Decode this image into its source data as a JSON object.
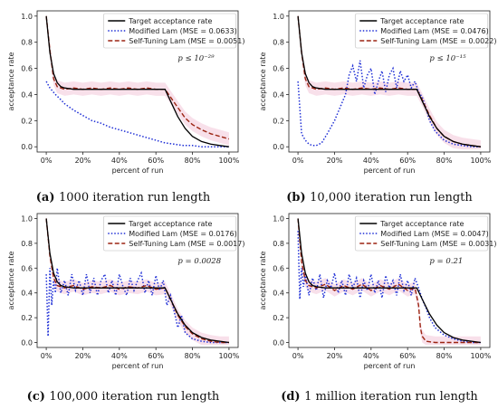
{
  "colors": {
    "target": "#000000",
    "modified": "#1f2fd6",
    "selftuning": "#9b2412",
    "band": "#f2c6d8"
  },
  "chart_data": [
    {
      "type": "line",
      "caption_label": "(a)",
      "caption_text": "1000 iteration run length",
      "xlabel": "percent of run",
      "ylabel": "acceptance rate",
      "xlim": [
        0,
        100
      ],
      "ylim": [
        0,
        1
      ],
      "xticks": [
        "0%",
        "20%",
        "40%",
        "60%",
        "80%",
        "100%"
      ],
      "yticks": [
        "0.0",
        "0.2",
        "0.4",
        "0.6",
        "0.8",
        "1.0"
      ],
      "legend": [
        "Target acceptance rate",
        "Modified Lam (MSE = 0.0633)",
        "Self-Tuning Lam (MSE = 0.0051)"
      ],
      "annotation": "p ≤ 10⁻²⁹",
      "target": {
        "x": [
          0,
          2,
          4,
          6,
          8,
          10,
          15,
          20,
          30,
          40,
          50,
          60,
          65,
          68,
          72,
          76,
          80,
          85,
          90,
          95,
          100
        ],
        "y": [
          1.0,
          0.72,
          0.56,
          0.49,
          0.46,
          0.45,
          0.44,
          0.44,
          0.44,
          0.44,
          0.44,
          0.44,
          0.44,
          0.35,
          0.23,
          0.14,
          0.08,
          0.04,
          0.02,
          0.01,
          0.0
        ]
      },
      "modified": {
        "x": [
          0,
          2,
          5,
          8,
          10,
          15,
          20,
          25,
          30,
          35,
          40,
          45,
          50,
          55,
          60,
          65,
          70,
          75,
          80,
          85,
          90,
          95,
          100
        ],
        "y": [
          0.5,
          0.45,
          0.4,
          0.36,
          0.33,
          0.28,
          0.24,
          0.2,
          0.18,
          0.15,
          0.13,
          0.11,
          0.09,
          0.07,
          0.05,
          0.03,
          0.02,
          0.01,
          0.01,
          0.0,
          0.0,
          0.0,
          0.0
        ]
      },
      "selftuning": {
        "x": [
          0,
          2,
          4,
          6,
          8,
          10,
          15,
          20,
          25,
          30,
          35,
          40,
          45,
          50,
          55,
          60,
          65,
          68,
          72,
          76,
          80,
          85,
          90,
          95,
          100
        ],
        "y": [
          1.0,
          0.74,
          0.52,
          0.46,
          0.45,
          0.44,
          0.45,
          0.44,
          0.45,
          0.44,
          0.45,
          0.44,
          0.45,
          0.44,
          0.45,
          0.44,
          0.44,
          0.38,
          0.3,
          0.22,
          0.17,
          0.13,
          0.1,
          0.08,
          0.06
        ]
      }
    },
    {
      "type": "line",
      "caption_label": "(b)",
      "caption_text": "10,000 iteration run length",
      "xlabel": "percent of run",
      "ylabel": "acceptance rate",
      "xlim": [
        0,
        100
      ],
      "ylim": [
        0,
        1
      ],
      "xticks": [
        "0%",
        "20%",
        "40%",
        "60%",
        "80%",
        "100%"
      ],
      "yticks": [
        "0.0",
        "0.2",
        "0.4",
        "0.6",
        "0.8",
        "1.0"
      ],
      "legend": [
        "Target acceptance rate",
        "Modified Lam (MSE = 0.0476)",
        "Self-Tuning Lam (MSE = 0.0022)"
      ],
      "annotation": "p ≤ 10⁻¹⁵",
      "target": {
        "x": [
          0,
          2,
          4,
          6,
          8,
          10,
          15,
          20,
          30,
          40,
          50,
          60,
          65,
          68,
          72,
          76,
          80,
          85,
          90,
          95,
          100
        ],
        "y": [
          1.0,
          0.72,
          0.56,
          0.49,
          0.46,
          0.45,
          0.44,
          0.44,
          0.44,
          0.44,
          0.44,
          0.44,
          0.44,
          0.35,
          0.23,
          0.14,
          0.08,
          0.04,
          0.02,
          0.01,
          0.0
        ]
      },
      "modified": {
        "x": [
          0,
          2,
          4,
          6,
          8,
          10,
          13,
          16,
          20,
          23,
          26,
          28,
          30,
          32,
          34,
          36,
          38,
          40,
          42,
          44,
          46,
          48,
          50,
          52,
          54,
          56,
          58,
          60,
          62,
          64,
          66,
          68,
          70,
          72,
          75,
          80,
          85,
          90,
          95,
          100
        ],
        "y": [
          0.5,
          0.1,
          0.05,
          0.02,
          0.01,
          0.01,
          0.03,
          0.1,
          0.2,
          0.3,
          0.4,
          0.55,
          0.62,
          0.5,
          0.66,
          0.45,
          0.55,
          0.6,
          0.4,
          0.5,
          0.58,
          0.42,
          0.55,
          0.6,
          0.45,
          0.58,
          0.5,
          0.55,
          0.45,
          0.5,
          0.42,
          0.38,
          0.3,
          0.2,
          0.12,
          0.05,
          0.02,
          0.01,
          0.0,
          0.0
        ]
      },
      "selftuning": {
        "x": [
          0,
          2,
          4,
          6,
          8,
          10,
          15,
          20,
          25,
          30,
          35,
          40,
          45,
          50,
          55,
          60,
          65,
          68,
          72,
          76,
          80,
          85,
          90,
          95,
          100
        ],
        "y": [
          1.0,
          0.72,
          0.52,
          0.46,
          0.45,
          0.44,
          0.45,
          0.44,
          0.45,
          0.44,
          0.45,
          0.44,
          0.45,
          0.44,
          0.45,
          0.44,
          0.44,
          0.36,
          0.24,
          0.14,
          0.08,
          0.04,
          0.02,
          0.01,
          0.0
        ]
      }
    },
    {
      "type": "line",
      "caption_label": "(c)",
      "caption_text": "100,000 iteration run length",
      "xlabel": "percent of run",
      "ylabel": "acceptance rate",
      "xlim": [
        0,
        100
      ],
      "ylim": [
        0,
        1
      ],
      "xticks": [
        "0%",
        "20%",
        "40%",
        "60%",
        "80%",
        "100%"
      ],
      "yticks": [
        "0.0",
        "0.2",
        "0.4",
        "0.6",
        "0.8",
        "1.0"
      ],
      "legend": [
        "Target acceptance rate",
        "Modified Lam (MSE = 0.0176)",
        "Self-Tuning Lam (MSE = 0.0017)"
      ],
      "annotation": "p = 0.0028",
      "target": {
        "x": [
          0,
          2,
          4,
          6,
          8,
          10,
          15,
          20,
          30,
          40,
          50,
          60,
          65,
          68,
          72,
          76,
          80,
          85,
          90,
          95,
          100
        ],
        "y": [
          1.0,
          0.72,
          0.56,
          0.49,
          0.46,
          0.45,
          0.44,
          0.44,
          0.44,
          0.44,
          0.44,
          0.44,
          0.44,
          0.35,
          0.23,
          0.14,
          0.08,
          0.04,
          0.02,
          0.01,
          0.0
        ]
      },
      "modified": {
        "x": [
          0,
          1,
          2,
          3,
          4,
          5,
          6,
          8,
          10,
          12,
          14,
          16,
          18,
          20,
          22,
          24,
          26,
          28,
          30,
          32,
          34,
          36,
          38,
          40,
          42,
          44,
          46,
          48,
          50,
          52,
          54,
          56,
          58,
          60,
          62,
          64,
          66,
          68,
          70,
          72,
          74,
          76,
          80,
          85,
          90,
          95,
          100
        ],
        "y": [
          0.55,
          0.05,
          0.6,
          0.3,
          0.5,
          0.4,
          0.6,
          0.4,
          0.5,
          0.38,
          0.55,
          0.42,
          0.5,
          0.38,
          0.55,
          0.4,
          0.52,
          0.38,
          0.5,
          0.55,
          0.4,
          0.5,
          0.38,
          0.55,
          0.45,
          0.38,
          0.52,
          0.42,
          0.5,
          0.56,
          0.4,
          0.5,
          0.38,
          0.54,
          0.42,
          0.5,
          0.3,
          0.38,
          0.25,
          0.12,
          0.22,
          0.08,
          0.03,
          0.01,
          0.0,
          0.0,
          0.0
        ]
      },
      "selftuning": {
        "x": [
          0,
          2,
          4,
          6,
          8,
          10,
          15,
          20,
          25,
          30,
          35,
          40,
          45,
          50,
          55,
          60,
          65,
          68,
          72,
          76,
          80,
          85,
          90,
          95,
          100
        ],
        "y": [
          1.0,
          0.7,
          0.52,
          0.46,
          0.45,
          0.44,
          0.46,
          0.43,
          0.45,
          0.44,
          0.46,
          0.43,
          0.45,
          0.44,
          0.46,
          0.43,
          0.44,
          0.35,
          0.22,
          0.13,
          0.07,
          0.03,
          0.01,
          0.0,
          0.0
        ]
      }
    },
    {
      "type": "line",
      "caption_label": "(d)",
      "caption_text": "1 million iteration run length",
      "xlabel": "percent of run",
      "ylabel": "acceptance rate",
      "xlim": [
        0,
        100
      ],
      "ylim": [
        0,
        1
      ],
      "xticks": [
        "0%",
        "20%",
        "40%",
        "60%",
        "80%",
        "100%"
      ],
      "yticks": [
        "0.0",
        "0.2",
        "0.4",
        "0.6",
        "0.8",
        "1.0"
      ],
      "legend": [
        "Target acceptance rate",
        "Modified Lam (MSE = 0.0047)",
        "Self-Tuning Lam (MSE = 0.0031)"
      ],
      "annotation": "p = 0.21",
      "target": {
        "x": [
          0,
          2,
          4,
          6,
          8,
          10,
          15,
          20,
          30,
          40,
          50,
          60,
          65,
          68,
          72,
          76,
          80,
          85,
          90,
          95,
          100
        ],
        "y": [
          1.0,
          0.72,
          0.56,
          0.49,
          0.46,
          0.45,
          0.44,
          0.44,
          0.44,
          0.44,
          0.44,
          0.44,
          0.44,
          0.35,
          0.23,
          0.14,
          0.08,
          0.04,
          0.02,
          0.01,
          0.0
        ]
      },
      "modified": {
        "x": [
          0,
          1,
          2,
          3,
          4,
          6,
          8,
          10,
          12,
          14,
          16,
          18,
          20,
          22,
          24,
          26,
          28,
          30,
          32,
          34,
          36,
          38,
          40,
          42,
          44,
          46,
          48,
          50,
          52,
          54,
          56,
          58,
          60,
          62,
          64,
          66,
          68,
          70,
          72,
          75,
          80,
          85,
          90,
          95,
          100
        ],
        "y": [
          0.9,
          0.35,
          0.6,
          0.45,
          0.55,
          0.38,
          0.52,
          0.42,
          0.55,
          0.36,
          0.5,
          0.44,
          0.56,
          0.4,
          0.5,
          0.38,
          0.55,
          0.44,
          0.52,
          0.36,
          0.5,
          0.42,
          0.55,
          0.4,
          0.5,
          0.36,
          0.54,
          0.44,
          0.5,
          0.38,
          0.55,
          0.42,
          0.5,
          0.38,
          0.52,
          0.44,
          0.35,
          0.28,
          0.2,
          0.12,
          0.06,
          0.03,
          0.01,
          0.0,
          0.0
        ]
      },
      "selftuning": {
        "x": [
          0,
          2,
          4,
          6,
          8,
          10,
          15,
          20,
          25,
          30,
          35,
          40,
          45,
          50,
          55,
          60,
          64,
          66,
          67,
          68,
          70,
          75,
          80,
          90,
          100
        ],
        "y": [
          1.0,
          0.65,
          0.5,
          0.46,
          0.45,
          0.44,
          0.47,
          0.42,
          0.46,
          0.43,
          0.47,
          0.42,
          0.46,
          0.43,
          0.47,
          0.42,
          0.44,
          0.3,
          0.12,
          0.05,
          0.01,
          0.0,
          0.0,
          0.0,
          0.0
        ]
      }
    }
  ]
}
